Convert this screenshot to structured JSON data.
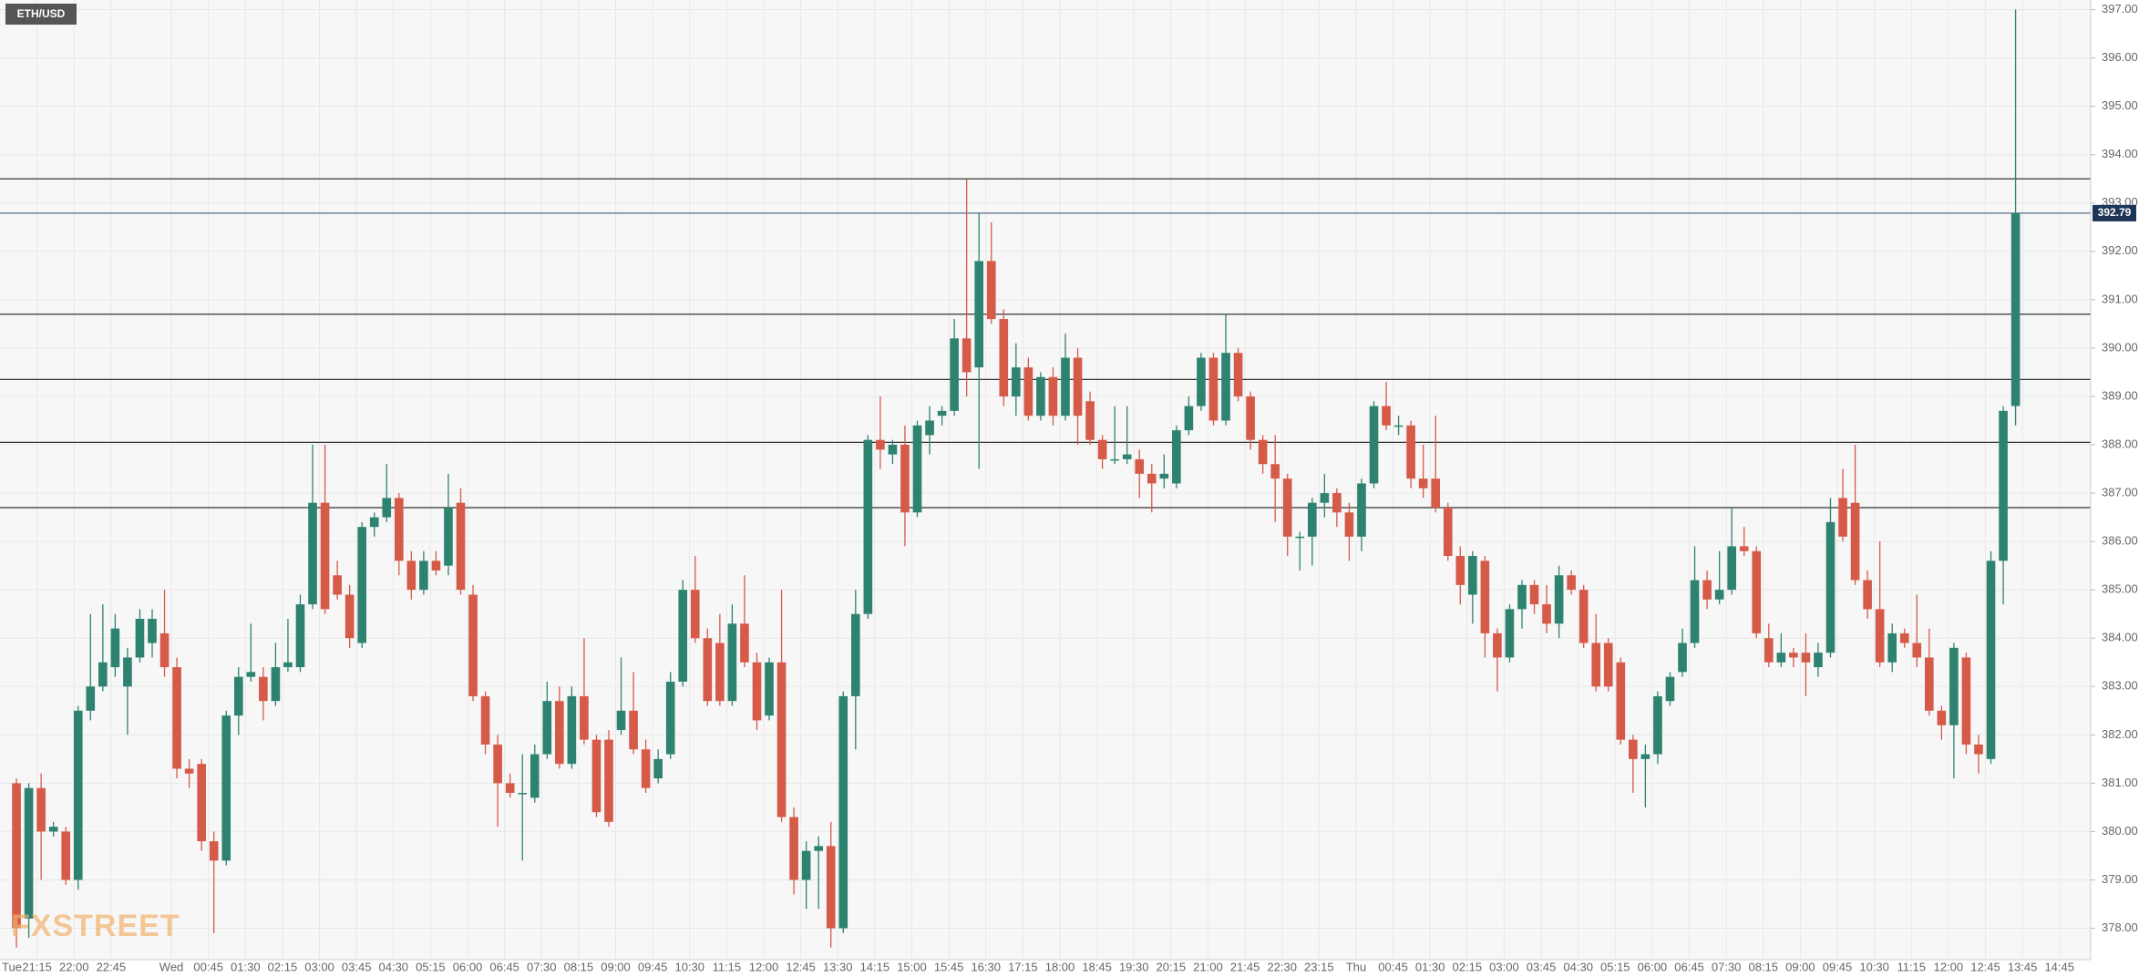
{
  "chart_data": {
    "type": "candlestick",
    "title": "ETH/USD",
    "watermark": "FXSTREET",
    "up_color": "#2e8370",
    "down_color": "#d65a48",
    "grid": true,
    "ylim": [
      378,
      397
    ],
    "yticks": [
      {
        "value": 378,
        "label": "378.00"
      },
      {
        "value": 379,
        "label": "379.00"
      },
      {
        "value": 380,
        "label": "380.00"
      },
      {
        "value": 381,
        "label": "381.00"
      },
      {
        "value": 382,
        "label": "382.00"
      },
      {
        "value": 383,
        "label": "383.00"
      },
      {
        "value": 384,
        "label": "384.00"
      },
      {
        "value": 385,
        "label": "385.00"
      },
      {
        "value": 386,
        "label": "386.00"
      },
      {
        "value": 387,
        "label": "387.00"
      },
      {
        "value": 388,
        "label": "388.00"
      },
      {
        "value": 389,
        "label": "389.00"
      },
      {
        "value": 390,
        "label": "390.00"
      },
      {
        "value": 391,
        "label": "391.00"
      },
      {
        "value": 392,
        "label": "392.00"
      },
      {
        "value": 393,
        "label": "393.00"
      },
      {
        "value": 394,
        "label": "394.00"
      },
      {
        "value": 395,
        "label": "395.00"
      },
      {
        "value": 396,
        "label": "396.00"
      },
      {
        "value": 397,
        "label": "397.00"
      }
    ],
    "xticks": [
      "Tue",
      "21:15",
      "22:00",
      "22:45",
      "Wed",
      "00:45",
      "01:30",
      "02:15",
      "03:00",
      "03:45",
      "04:30",
      "05:15",
      "06:00",
      "06:45",
      "07:30",
      "08:15",
      "09:00",
      "09:45",
      "10:30",
      "11:15",
      "12:00",
      "12:45",
      "13:30",
      "14:15",
      "15:00",
      "15:45",
      "16:30",
      "17:15",
      "18:00",
      "18:45",
      "19:30",
      "20:15",
      "21:00",
      "21:45",
      "22:30",
      "23:15",
      "Thu",
      "00:45",
      "01:30",
      "02:15",
      "03:00",
      "03:45",
      "04:30",
      "05:15",
      "06:00",
      "06:45",
      "07:30",
      "08:15",
      "09:00",
      "09:45",
      "10:30",
      "11:15",
      "12:00",
      "12:45",
      "13:45",
      "14:45"
    ],
    "levels": [
      393.5,
      390.7,
      389.35,
      388.05,
      386.7
    ],
    "last_price": 392.79,
    "ohlc": [
      [
        381.0,
        381.1,
        377.6,
        378.0
      ],
      [
        378.2,
        381.0,
        377.8,
        380.9
      ],
      [
        380.9,
        381.2,
        379.0,
        380.0
      ],
      [
        380.0,
        380.2,
        379.9,
        380.1
      ],
      [
        380.0,
        380.1,
        378.9,
        379.0
      ],
      [
        379.0,
        382.6,
        378.8,
        382.5
      ],
      [
        382.5,
        384.5,
        382.3,
        383.0
      ],
      [
        383.0,
        384.7,
        382.9,
        383.5
      ],
      [
        383.4,
        384.5,
        383.2,
        384.2
      ],
      [
        383.0,
        383.8,
        382.0,
        383.6
      ],
      [
        383.6,
        384.6,
        383.5,
        384.4
      ],
      [
        383.9,
        384.6,
        383.6,
        384.4
      ],
      [
        384.1,
        385.0,
        383.2,
        383.4
      ],
      [
        383.4,
        383.6,
        381.1,
        381.3
      ],
      [
        381.3,
        381.5,
        380.9,
        381.2
      ],
      [
        381.4,
        381.5,
        379.6,
        379.8
      ],
      [
        379.8,
        380.0,
        377.9,
        379.4
      ],
      [
        379.4,
        382.5,
        379.3,
        382.4
      ],
      [
        382.4,
        383.4,
        382.0,
        383.2
      ],
      [
        383.2,
        384.3,
        383.1,
        383.3
      ],
      [
        383.2,
        383.4,
        382.3,
        382.7
      ],
      [
        382.7,
        383.9,
        382.6,
        383.4
      ],
      [
        383.4,
        384.4,
        383.3,
        383.5
      ],
      [
        383.4,
        384.9,
        383.3,
        384.7
      ],
      [
        384.7,
        388.0,
        384.6,
        386.8
      ],
      [
        386.8,
        388.0,
        384.5,
        384.6
      ],
      [
        385.3,
        385.6,
        384.8,
        384.9
      ],
      [
        384.9,
        385.1,
        383.8,
        384.0
      ],
      [
        383.9,
        386.4,
        383.8,
        386.3
      ],
      [
        386.3,
        386.6,
        386.1,
        386.5
      ],
      [
        386.5,
        387.6,
        386.4,
        386.9
      ],
      [
        386.9,
        387.0,
        385.3,
        385.6
      ],
      [
        385.6,
        385.8,
        384.8,
        385.0
      ],
      [
        385.0,
        385.8,
        384.9,
        385.6
      ],
      [
        385.6,
        385.8,
        385.3,
        385.4
      ],
      [
        385.5,
        387.4,
        385.3,
        386.7
      ],
      [
        386.8,
        387.1,
        384.9,
        385.0
      ],
      [
        384.9,
        385.1,
        382.7,
        382.8
      ],
      [
        382.8,
        382.9,
        381.6,
        381.8
      ],
      [
        381.8,
        382.0,
        380.1,
        381.0
      ],
      [
        381.0,
        381.2,
        380.7,
        380.8
      ],
      [
        380.8,
        381.6,
        379.4,
        380.8
      ],
      [
        380.7,
        381.8,
        380.6,
        381.6
      ],
      [
        381.6,
        383.1,
        381.5,
        382.7
      ],
      [
        382.7,
        383.0,
        381.3,
        381.4
      ],
      [
        381.4,
        383.0,
        381.3,
        382.8
      ],
      [
        382.8,
        384.0,
        381.8,
        381.9
      ],
      [
        381.9,
        382.0,
        380.3,
        380.4
      ],
      [
        381.9,
        382.1,
        380.1,
        380.2
      ],
      [
        382.1,
        383.6,
        382.0,
        382.5
      ],
      [
        382.5,
        383.3,
        381.6,
        381.7
      ],
      [
        381.7,
        381.9,
        380.8,
        380.9
      ],
      [
        381.1,
        381.7,
        381.0,
        381.5
      ],
      [
        381.6,
        383.3,
        381.5,
        383.1
      ],
      [
        383.1,
        385.2,
        383.0,
        385.0
      ],
      [
        385.0,
        385.7,
        383.9,
        384.0
      ],
      [
        384.0,
        384.2,
        382.6,
        382.7
      ],
      [
        383.9,
        384.5,
        382.6,
        382.7
      ],
      [
        382.7,
        384.7,
        382.6,
        384.3
      ],
      [
        384.3,
        385.3,
        383.4,
        383.5
      ],
      [
        383.5,
        383.7,
        382.1,
        382.3
      ],
      [
        382.4,
        383.6,
        382.3,
        383.5
      ],
      [
        383.5,
        385.0,
        380.2,
        380.3
      ],
      [
        380.3,
        380.5,
        378.7,
        379.0
      ],
      [
        379.0,
        379.8,
        378.4,
        379.6
      ],
      [
        379.6,
        379.9,
        378.4,
        379.7
      ],
      [
        379.7,
        380.2,
        377.6,
        378.0
      ],
      [
        378.0,
        382.9,
        377.9,
        382.8
      ],
      [
        382.8,
        385.0,
        381.7,
        384.5
      ],
      [
        384.5,
        388.2,
        384.4,
        388.1
      ],
      [
        388.1,
        389.0,
        387.5,
        387.9
      ],
      [
        387.8,
        388.1,
        387.6,
        388.0
      ],
      [
        388.0,
        388.4,
        385.9,
        386.6
      ],
      [
        386.6,
        388.5,
        386.5,
        388.4
      ],
      [
        388.2,
        388.8,
        387.8,
        388.5
      ],
      [
        388.6,
        388.8,
        388.4,
        388.7
      ],
      [
        388.7,
        390.6,
        388.6,
        390.2
      ],
      [
        390.2,
        393.5,
        389.0,
        389.5
      ],
      [
        389.6,
        392.8,
        387.5,
        391.8
      ],
      [
        391.8,
        392.6,
        390.5,
        390.6
      ],
      [
        390.6,
        390.8,
        388.8,
        389.0
      ],
      [
        389.0,
        390.1,
        388.6,
        389.6
      ],
      [
        389.6,
        389.8,
        388.5,
        388.6
      ],
      [
        388.6,
        389.5,
        388.5,
        389.4
      ],
      [
        389.4,
        389.6,
        388.4,
        388.6
      ],
      [
        388.6,
        390.3,
        388.5,
        389.8
      ],
      [
        389.8,
        390.0,
        388.0,
        388.6
      ],
      [
        388.9,
        389.1,
        388.0,
        388.1
      ],
      [
        388.1,
        388.2,
        387.5,
        387.7
      ],
      [
        387.7,
        388.8,
        387.6,
        387.7
      ],
      [
        387.7,
        388.8,
        387.6,
        387.8
      ],
      [
        387.7,
        387.9,
        386.9,
        387.4
      ],
      [
        387.4,
        387.6,
        386.6,
        387.2
      ],
      [
        387.3,
        387.8,
        387.1,
        387.4
      ],
      [
        387.2,
        388.4,
        387.1,
        388.3
      ],
      [
        388.3,
        389.0,
        388.2,
        388.8
      ],
      [
        388.8,
        389.9,
        388.7,
        389.8
      ],
      [
        389.8,
        389.9,
        388.4,
        388.5
      ],
      [
        388.5,
        390.7,
        388.4,
        389.9
      ],
      [
        389.9,
        390.0,
        388.9,
        389.0
      ],
      [
        389.0,
        389.1,
        387.9,
        388.1
      ],
      [
        388.1,
        388.2,
        387.4,
        387.6
      ],
      [
        387.6,
        388.2,
        386.4,
        387.3
      ],
      [
        387.3,
        387.4,
        385.7,
        386.1
      ],
      [
        386.1,
        386.2,
        385.4,
        386.1
      ],
      [
        386.1,
        386.9,
        385.5,
        386.8
      ],
      [
        386.8,
        387.4,
        386.5,
        387.0
      ],
      [
        387.0,
        387.1,
        386.3,
        386.6
      ],
      [
        386.6,
        386.8,
        385.6,
        386.1
      ],
      [
        386.1,
        387.3,
        385.8,
        387.2
      ],
      [
        387.2,
        388.9,
        387.1,
        388.8
      ],
      [
        388.8,
        389.3,
        388.3,
        388.4
      ],
      [
        388.4,
        388.6,
        388.2,
        388.4
      ],
      [
        388.4,
        388.5,
        387.1,
        387.3
      ],
      [
        387.3,
        388.0,
        386.9,
        387.1
      ],
      [
        387.3,
        388.6,
        386.6,
        386.7
      ],
      [
        386.7,
        386.8,
        385.6,
        385.7
      ],
      [
        385.7,
        385.9,
        384.7,
        385.1
      ],
      [
        384.9,
        385.8,
        384.3,
        385.7
      ],
      [
        385.6,
        385.7,
        383.6,
        384.1
      ],
      [
        384.1,
        384.2,
        382.9,
        383.6
      ],
      [
        383.6,
        384.7,
        383.5,
        384.6
      ],
      [
        384.6,
        385.2,
        384.2,
        385.1
      ],
      [
        385.1,
        385.2,
        384.5,
        384.7
      ],
      [
        384.7,
        385.1,
        384.1,
        384.3
      ],
      [
        384.3,
        385.5,
        384.0,
        385.3
      ],
      [
        385.3,
        385.4,
        384.9,
        385.0
      ],
      [
        385.0,
        385.1,
        383.8,
        383.9
      ],
      [
        383.9,
        384.5,
        382.9,
        383.0
      ],
      [
        383.9,
        384.0,
        382.9,
        383.0
      ],
      [
        383.5,
        383.6,
        381.8,
        381.9
      ],
      [
        381.9,
        382.0,
        380.8,
        381.5
      ],
      [
        381.5,
        381.8,
        380.5,
        381.6
      ],
      [
        381.6,
        382.9,
        381.4,
        382.8
      ],
      [
        382.7,
        383.3,
        382.6,
        383.2
      ],
      [
        383.3,
        384.2,
        383.2,
        383.9
      ],
      [
        383.9,
        385.9,
        383.8,
        385.2
      ],
      [
        385.2,
        385.4,
        384.6,
        384.8
      ],
      [
        384.8,
        385.8,
        384.7,
        385.0
      ],
      [
        385.0,
        386.7,
        384.9,
        385.9
      ],
      [
        385.9,
        386.3,
        385.7,
        385.8
      ],
      [
        385.8,
        385.9,
        384.0,
        384.1
      ],
      [
        384.0,
        384.3,
        383.4,
        383.5
      ],
      [
        383.5,
        384.1,
        383.4,
        383.7
      ],
      [
        383.7,
        383.8,
        383.4,
        383.6
      ],
      [
        383.7,
        384.1,
        382.8,
        383.5
      ],
      [
        383.4,
        383.9,
        383.2,
        383.7
      ],
      [
        383.7,
        386.9,
        383.6,
        386.4
      ],
      [
        386.9,
        387.5,
        386.0,
        386.1
      ],
      [
        386.8,
        388.0,
        385.1,
        385.2
      ],
      [
        385.2,
        385.4,
        384.4,
        384.6
      ],
      [
        384.6,
        386.0,
        383.4,
        383.5
      ],
      [
        383.5,
        384.3,
        383.3,
        384.1
      ],
      [
        384.1,
        384.2,
        383.8,
        383.9
      ],
      [
        383.9,
        384.9,
        383.4,
        383.6
      ],
      [
        383.6,
        384.2,
        382.4,
        382.5
      ],
      [
        382.5,
        382.6,
        381.9,
        382.2
      ],
      [
        382.2,
        383.9,
        381.1,
        383.8
      ],
      [
        383.6,
        383.7,
        381.6,
        381.8
      ],
      [
        381.8,
        382.0,
        381.2,
        381.6
      ],
      [
        381.5,
        385.8,
        381.4,
        385.6
      ],
      [
        385.6,
        388.8,
        384.7,
        388.7
      ],
      [
        388.8,
        397.0,
        388.4,
        392.79
      ]
    ]
  }
}
